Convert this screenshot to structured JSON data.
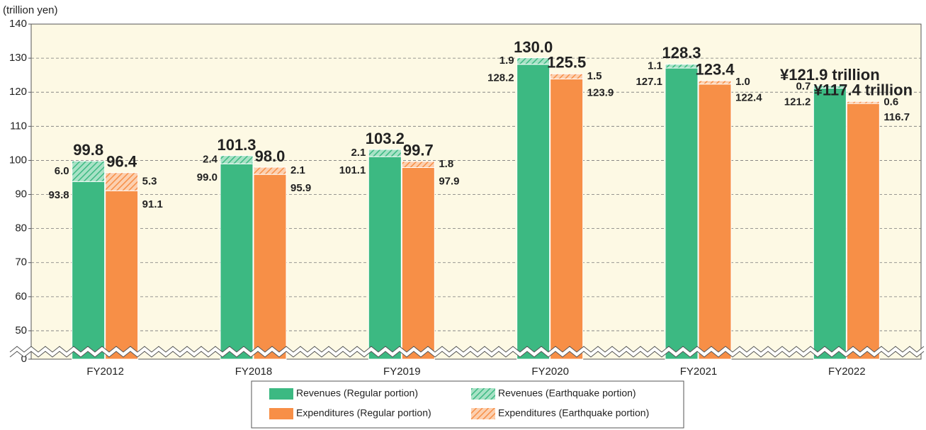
{
  "chart_data": {
    "type": "stacked_grouped_bar",
    "y_label": "(trillion yen)",
    "categories": [
      "FY2012",
      "FY2018",
      "FY2019",
      "FY2020",
      "FY2021",
      "FY2022"
    ],
    "series": [
      {
        "name": "Revenues (Regular portion)",
        "color": "#3cb982",
        "stack": 0,
        "hatch": false,
        "values": [
          93.8,
          99.0,
          101.1,
          128.2,
          127.1,
          121.2
        ],
        "value_labels": [
          "93.8",
          "99.0",
          "101.1",
          "128.2",
          "127.1",
          "121.2"
        ]
      },
      {
        "name": "Revenues (Earthquake portion)",
        "color": "#3cb982",
        "stack": 0,
        "hatch": true,
        "values": [
          6.0,
          2.4,
          2.1,
          1.9,
          1.1,
          0.7
        ],
        "value_labels": [
          "6.0",
          "2.4",
          "2.1",
          "1.9",
          "1.1",
          "0.7"
        ]
      },
      {
        "name": "Expenditures (Regular portion)",
        "color": "#f78f47",
        "stack": 1,
        "hatch": false,
        "values": [
          91.1,
          95.9,
          97.9,
          123.9,
          122.4,
          116.7
        ],
        "value_labels": [
          "91.1",
          "95.9",
          "97.9",
          "123.9",
          "122.4",
          "116.7"
        ]
      },
      {
        "name": "Expenditures (Earthquake portion)",
        "color": "#f78f47",
        "stack": 1,
        "hatch": true,
        "values": [
          5.3,
          2.1,
          1.8,
          1.5,
          1.0,
          0.6
        ],
        "value_labels": [
          "5.3",
          "2.1",
          "1.8",
          "1.5",
          "1.0",
          "0.6"
        ]
      }
    ],
    "stack_totals": [
      {
        "values": [
          99.8,
          101.3,
          103.2,
          130.0,
          128.3,
          121.9
        ],
        "value_labels": [
          "99.8",
          "101.3",
          "103.2",
          "130.0",
          "128.3",
          "¥121.9 trillion"
        ]
      },
      {
        "values": [
          96.4,
          98.0,
          99.7,
          125.5,
          123.4,
          117.4
        ],
        "value_labels": [
          "96.4",
          "98.0",
          "99.7",
          "125.5",
          "123.4",
          "¥117.4 trillion"
        ]
      }
    ],
    "ylim": [
      0,
      140
    ],
    "ybreak": [
      0,
      45
    ],
    "yticks": [
      0,
      50,
      60,
      70,
      80,
      90,
      100,
      110,
      120,
      130,
      140
    ],
    "grid": true
  }
}
